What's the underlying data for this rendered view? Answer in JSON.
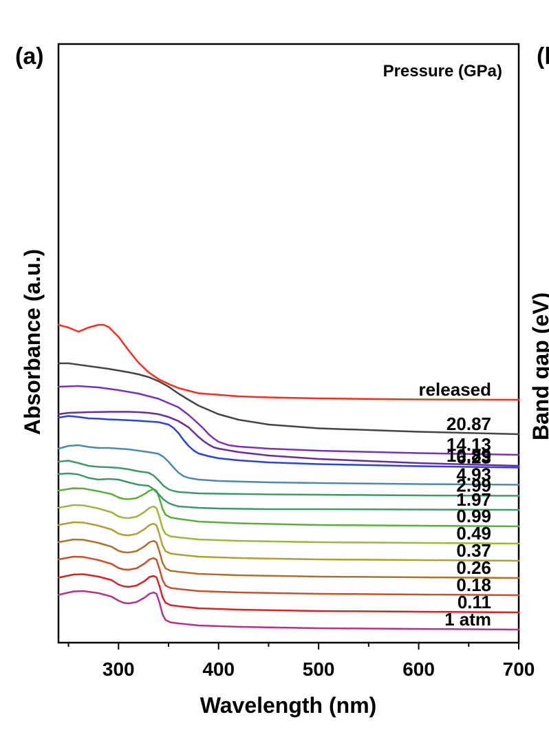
{
  "chart_data": {
    "type": "line",
    "panel_label": "(a)",
    "cut_panel_label": "(l",
    "cut_axis_title": "Band gap (eV)",
    "xlabel": "Wavelength (nm)",
    "ylabel": "Absorbance (a.u.)",
    "xlim": [
      240,
      700
    ],
    "x_ticks": [
      300,
      400,
      500,
      600,
      700
    ],
    "x_minor_step": 50,
    "y_ticks": "none",
    "grid": false,
    "legend_title": "Pressure (GPa)",
    "offset_step": 0.5,
    "series": [
      {
        "name": "1 atm",
        "color": "#b8308a",
        "x": [
          240,
          255,
          265,
          280,
          293,
          300,
          305,
          310,
          318,
          326,
          331,
          335,
          338,
          341,
          344,
          347,
          352,
          360,
          380,
          420,
          500,
          600,
          700
        ],
        "y": [
          1.95,
          2.05,
          2.06,
          2.0,
          1.9,
          1.78,
          1.72,
          1.7,
          1.74,
          1.87,
          1.98,
          2.02,
          1.98,
          1.72,
          1.38,
          1.22,
          1.15,
          1.12,
          1.06,
          1.02,
          0.98,
          0.96,
          0.94
        ]
      },
      {
        "name": "0.11",
        "color": "#e02020",
        "x": [
          240,
          255,
          265,
          280,
          293,
          300,
          305,
          310,
          318,
          326,
          331,
          335,
          338,
          341,
          344,
          347,
          352,
          360,
          380,
          420,
          500,
          600,
          700
        ],
        "y": [
          2.45,
          2.54,
          2.55,
          2.48,
          2.38,
          2.25,
          2.2,
          2.18,
          2.22,
          2.35,
          2.47,
          2.5,
          2.46,
          2.2,
          1.88,
          1.72,
          1.65,
          1.62,
          1.56,
          1.52,
          1.48,
          1.46,
          1.44
        ]
      },
      {
        "name": "0.18",
        "color": "#c8502a",
        "x": [
          240,
          255,
          265,
          280,
          293,
          300,
          305,
          310,
          318,
          326,
          331,
          335,
          338,
          341,
          344,
          347,
          352,
          360,
          380,
          420,
          500,
          600,
          700
        ],
        "y": [
          2.98,
          3.06,
          3.05,
          2.96,
          2.85,
          2.73,
          2.69,
          2.68,
          2.72,
          2.86,
          2.98,
          3.02,
          2.97,
          2.7,
          2.38,
          2.22,
          2.15,
          2.12,
          2.06,
          2.02,
          1.98,
          1.96,
          1.94
        ]
      },
      {
        "name": "0.26",
        "color": "#b07028",
        "x": [
          240,
          255,
          265,
          280,
          293,
          300,
          305,
          310,
          318,
          326,
          331,
          335,
          338,
          341,
          344,
          347,
          352,
          360,
          380,
          420,
          500,
          600,
          700
        ],
        "y": [
          3.48,
          3.56,
          3.55,
          3.46,
          3.35,
          3.23,
          3.19,
          3.18,
          3.22,
          3.36,
          3.48,
          3.52,
          3.47,
          3.2,
          2.88,
          2.72,
          2.65,
          2.62,
          2.56,
          2.52,
          2.48,
          2.46,
          2.44
        ]
      },
      {
        "name": "0.37",
        "color": "#b0a030",
        "x": [
          240,
          255,
          265,
          280,
          293,
          300,
          305,
          310,
          318,
          326,
          331,
          335,
          338,
          341,
          344,
          347,
          352,
          360,
          380,
          420,
          500,
          600,
          700
        ],
        "y": [
          3.98,
          4.06,
          4.05,
          3.96,
          3.85,
          3.73,
          3.69,
          3.68,
          3.72,
          3.86,
          3.98,
          4.02,
          3.97,
          3.7,
          3.38,
          3.22,
          3.15,
          3.12,
          3.06,
          3.02,
          2.98,
          2.96,
          2.94
        ]
      },
      {
        "name": "0.49",
        "color": "#9ab83a",
        "x": [
          240,
          255,
          265,
          280,
          293,
          300,
          305,
          310,
          318,
          326,
          331,
          335,
          338,
          341,
          344,
          347,
          352,
          360,
          380,
          420,
          500,
          600,
          700
        ],
        "y": [
          4.48,
          4.56,
          4.55,
          4.46,
          4.35,
          4.23,
          4.19,
          4.18,
          4.22,
          4.36,
          4.48,
          4.52,
          4.47,
          4.2,
          3.88,
          3.72,
          3.65,
          3.62,
          3.56,
          3.52,
          3.48,
          3.46,
          3.44
        ]
      },
      {
        "name": "0.99",
        "color": "#5aae3a",
        "x": [
          240,
          255,
          265,
          280,
          293,
          300,
          305,
          310,
          318,
          326,
          331,
          335,
          338,
          341,
          344,
          347,
          352,
          360,
          380,
          420,
          500,
          600,
          700
        ],
        "y": [
          4.98,
          5.05,
          5.04,
          4.96,
          4.88,
          4.78,
          4.74,
          4.73,
          4.76,
          4.88,
          4.98,
          5.02,
          4.98,
          4.74,
          4.45,
          4.28,
          4.2,
          4.16,
          4.08,
          4.03,
          3.98,
          3.96,
          3.94
        ]
      },
      {
        "name": "1.97",
        "color": "#3a9a68",
        "x": [
          240,
          250,
          260,
          270,
          280,
          290,
          300,
          310,
          320,
          330,
          335,
          340,
          345,
          350,
          355,
          360,
          370,
          380,
          400,
          450,
          500,
          600,
          700
        ],
        "y": [
          5.46,
          5.48,
          5.45,
          5.35,
          5.3,
          5.32,
          5.3,
          5.22,
          5.15,
          5.12,
          5.02,
          4.88,
          4.72,
          4.62,
          4.56,
          4.52,
          4.5,
          4.48,
          4.46,
          4.44,
          4.44,
          4.43,
          4.42
        ]
      },
      {
        "name": "2.99",
        "color": "#3a9a68",
        "x": [
          240,
          250,
          260,
          270,
          280,
          290,
          300,
          310,
          320,
          330,
          335,
          340,
          345,
          350,
          355,
          360,
          370,
          380,
          400,
          450,
          500,
          600,
          700
        ],
        "y": [
          5.82,
          5.85,
          5.78,
          5.7,
          5.67,
          5.66,
          5.64,
          5.6,
          5.54,
          5.5,
          5.42,
          5.28,
          5.12,
          5.02,
          4.97,
          4.94,
          4.92,
          4.9,
          4.89,
          4.87,
          4.86,
          4.84,
          4.83
        ]
      },
      {
        "name": "4.93",
        "color": "#4a8aaa",
        "x": [
          240,
          250,
          260,
          270,
          280,
          290,
          300,
          310,
          320,
          330,
          340,
          345,
          350,
          355,
          360,
          365,
          370,
          380,
          400,
          450,
          500,
          600,
          700
        ],
        "y": [
          6.2,
          6.28,
          6.3,
          6.25,
          6.22,
          6.22,
          6.2,
          6.18,
          6.14,
          6.1,
          6.05,
          5.96,
          5.82,
          5.65,
          5.5,
          5.4,
          5.35,
          5.3,
          5.26,
          5.22,
          5.2,
          5.17,
          5.15
        ]
      },
      {
        "name": "6.23",
        "color": "#2a40e0",
        "x": [
          240,
          250,
          260,
          270,
          280,
          290,
          300,
          320,
          340,
          350,
          355,
          360,
          365,
          370,
          375,
          380,
          390,
          400,
          420,
          450,
          500,
          600,
          700
        ],
        "y": [
          7.1,
          7.15,
          7.12,
          7.08,
          7.07,
          7.05,
          7.04,
          7.01,
          6.97,
          6.9,
          6.8,
          6.65,
          6.45,
          6.28,
          6.15,
          6.06,
          5.98,
          5.92,
          5.86,
          5.8,
          5.75,
          5.69,
          5.65
        ]
      },
      {
        "name": "10.89",
        "color": "#6a2aa0",
        "x": [
          240,
          250,
          270,
          290,
          310,
          320,
          330,
          340,
          350,
          360,
          370,
          375,
          380,
          385,
          390,
          395,
          400,
          420,
          450,
          500,
          600,
          700
        ],
        "y": [
          7.2,
          7.24,
          7.26,
          7.27,
          7.27,
          7.26,
          7.24,
          7.2,
          7.12,
          7.0,
          6.82,
          6.68,
          6.54,
          6.42,
          6.32,
          6.24,
          6.2,
          6.1,
          6.0,
          5.9,
          5.78,
          5.7
        ]
      },
      {
        "name": "14.13",
        "color": "#7a30b8",
        "x": [
          240,
          260,
          280,
          300,
          320,
          340,
          360,
          370,
          380,
          385,
          390,
          395,
          400,
          410,
          420,
          450,
          500,
          600,
          700
        ],
        "y": [
          8.0,
          8.02,
          7.98,
          7.9,
          7.8,
          7.65,
          7.4,
          7.18,
          6.92,
          6.78,
          6.62,
          6.5,
          6.4,
          6.3,
          6.26,
          6.2,
          6.14,
          6.07,
          6.02
        ]
      },
      {
        "name": "20.87",
        "color": "#444444",
        "x": [
          240,
          250,
          270,
          290,
          310,
          320,
          330,
          340,
          350,
          360,
          370,
          380,
          400,
          420,
          450,
          500,
          600,
          700
        ],
        "y": [
          8.68,
          8.68,
          8.6,
          8.52,
          8.42,
          8.36,
          8.28,
          8.16,
          8.0,
          7.8,
          7.62,
          7.45,
          7.2,
          7.04,
          6.9,
          6.79,
          6.69,
          6.62
        ]
      },
      {
        "name": "released",
        "color": "#ff2a1a",
        "x": [
          240,
          250,
          260,
          270,
          280,
          285,
          290,
          300,
          310,
          320,
          330,
          340,
          350,
          360,
          380,
          420,
          450,
          500,
          600,
          700
        ],
        "y": [
          9.8,
          9.72,
          9.6,
          9.72,
          9.8,
          9.8,
          9.74,
          9.45,
          9.06,
          8.7,
          8.42,
          8.22,
          8.08,
          7.96,
          7.81,
          7.72,
          7.69,
          7.66,
          7.63,
          7.62
        ]
      }
    ]
  }
}
